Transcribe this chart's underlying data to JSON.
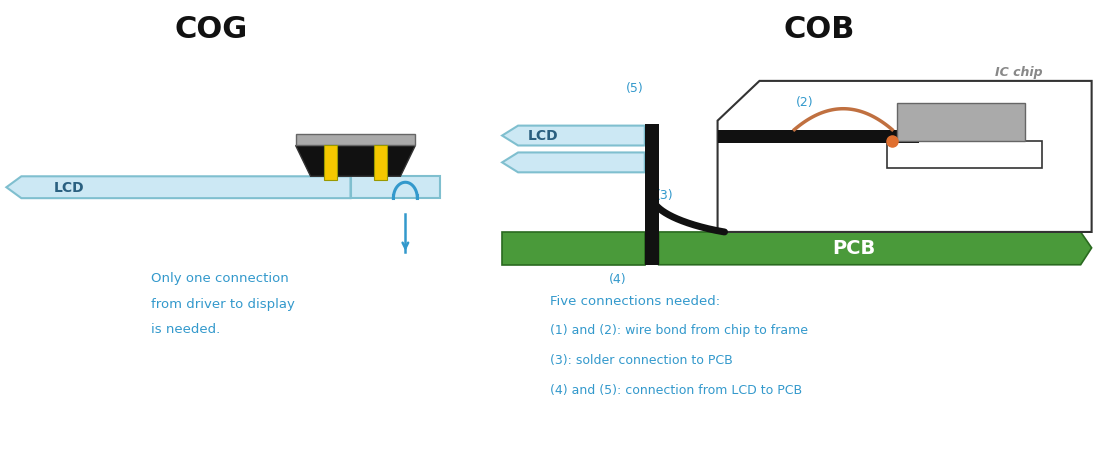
{
  "bg_color": "#ffffff",
  "cog_title": "COG",
  "cob_title": "COB",
  "lcd_color": "#cce8f4",
  "lcd_border": "#7fbfcf",
  "lcd_label_color": "#2a6080",
  "pcb_color": "#4a9a3a",
  "pcb_border": "#2a6a20",
  "black_color": "#111111",
  "yellow_color": "#f5c800",
  "blue_annotation": "#3399cc",
  "orange_color": "#e07030",
  "wire_color": "#c07040",
  "gray_chip": "#aaaaaa",
  "annotation_text_lines": [
    "Only one connection",
    "from driver to display",
    "is needed."
  ],
  "five_connections_lines": [
    "Five connections needed:",
    "(1) and (2): wire bond from chip to frame",
    "(3): solder connection to PCB",
    "(4) and (5): connection from LCD to PCB"
  ],
  "ic_chip_label": "IC chip"
}
